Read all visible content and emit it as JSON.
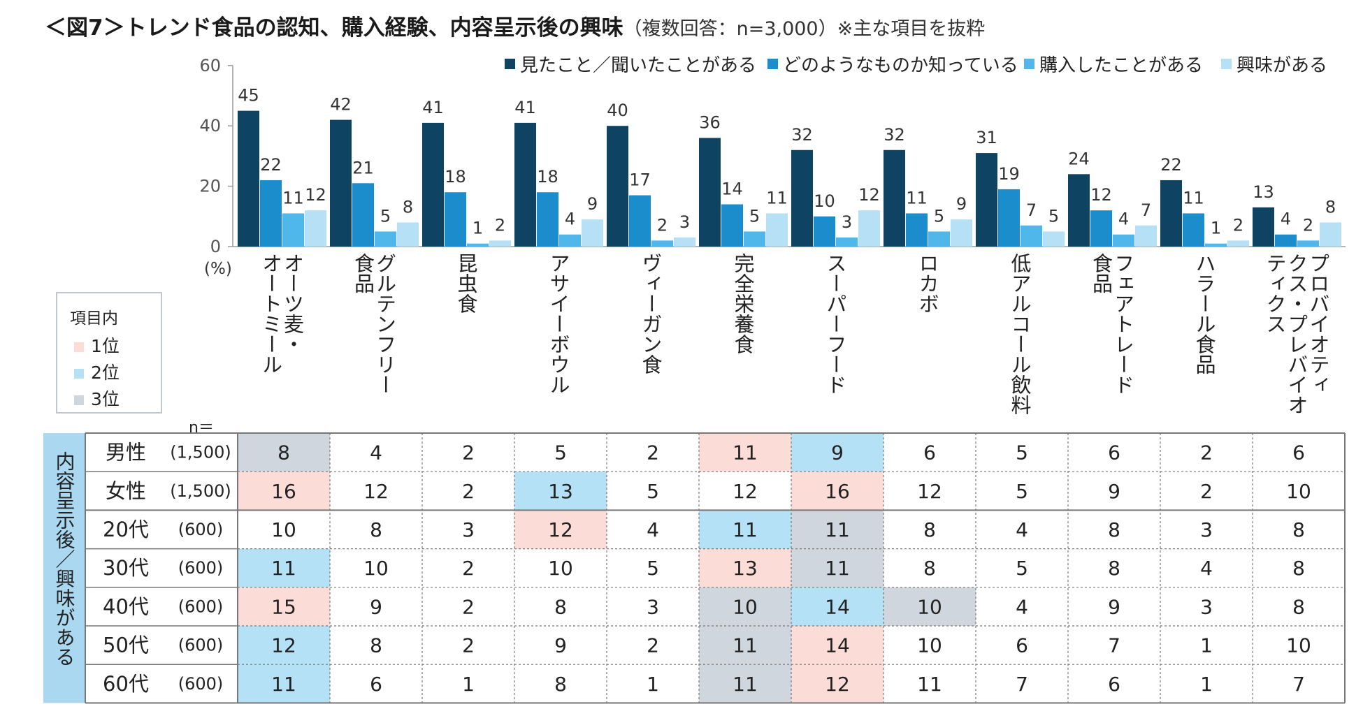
{
  "title": "＜図7＞トレンド食品の認知、購入経験、内容呈示後の興味",
  "title_note": "（複数回答：n=3,000）※主な項目を抜粋",
  "chart_data": {
    "type": "bar",
    "ylim": [
      0,
      60
    ],
    "yticks": [
      0,
      20,
      40,
      60
    ],
    "yunit": "(%)",
    "categories": [
      "オーツ麦・オートミール",
      "グルテンフリー食品",
      "昆虫食",
      "アサイーボウル",
      "ヴィーガン食",
      "完全栄養食",
      "スーパーフード",
      "ロカボ",
      "低アルコール飲料",
      "フェアトレード食品",
      "ハラール食品",
      "プロバイオティクス・プレバイオティクス"
    ],
    "category_lines": [
      [
        "オーツ麦・",
        "オートミール"
      ],
      [
        "グルテンフリー",
        "食品"
      ],
      [
        "昆虫食"
      ],
      [
        "アサイーボウル"
      ],
      [
        "ヴィーガン食"
      ],
      [
        "完全栄養食"
      ],
      [
        "スーパーフード"
      ],
      [
        "ロカボ"
      ],
      [
        "低アルコール飲料"
      ],
      [
        "フェアトレード",
        "食品"
      ],
      [
        "ハラール食品"
      ],
      [
        "プロバイオティ",
        "クス・プレバイオ",
        "ティクス"
      ]
    ],
    "series": [
      {
        "name": "見たこと／聞いたことがある",
        "color": "#0e4462",
        "values": [
          45,
          42,
          41,
          41,
          40,
          36,
          32,
          32,
          31,
          24,
          22,
          13
        ]
      },
      {
        "name": "どのようなものか知っている",
        "color": "#1b8ccc",
        "values": [
          22,
          21,
          18,
          18,
          17,
          14,
          10,
          11,
          19,
          12,
          11,
          4
        ]
      },
      {
        "name": "購入したことがある",
        "color": "#4fb7ea",
        "values": [
          11,
          5,
          1,
          4,
          2,
          5,
          3,
          5,
          7,
          4,
          1,
          2
        ]
      },
      {
        "name": "興味がある",
        "color": "#b6e0f5",
        "values": [
          12,
          8,
          2,
          9,
          3,
          11,
          12,
          9,
          5,
          7,
          2,
          8
        ]
      }
    ]
  },
  "rank_legend": {
    "title": "項目内",
    "items": [
      {
        "label": "1位",
        "color": "#fbdcd6"
      },
      {
        "label": "2位",
        "color": "#b4e1f6"
      },
      {
        "label": "3位",
        "color": "#cfd6de"
      }
    ]
  },
  "table": {
    "side_label": "内容呈示後／興味がある",
    "side_color": "#a9d8f0",
    "n_label": "n＝",
    "rows": [
      {
        "label": "男性",
        "n": "(1,500)",
        "values": [
          8,
          4,
          2,
          5,
          2,
          11,
          9,
          6,
          5,
          6,
          2,
          6
        ],
        "ranks": [
          3,
          0,
          0,
          0,
          0,
          1,
          2,
          0,
          0,
          0,
          0,
          0
        ]
      },
      {
        "label": "女性",
        "n": "(1,500)",
        "values": [
          16,
          12,
          2,
          13,
          5,
          12,
          16,
          12,
          5,
          9,
          2,
          10
        ],
        "ranks": [
          1,
          0,
          0,
          2,
          0,
          0,
          1,
          0,
          0,
          0,
          0,
          0
        ]
      },
      {
        "label": "20代",
        "n": "(600)",
        "values": [
          10,
          8,
          3,
          12,
          4,
          11,
          11,
          8,
          4,
          8,
          3,
          8
        ],
        "ranks": [
          0,
          0,
          0,
          1,
          0,
          2,
          3,
          0,
          0,
          0,
          0,
          0
        ]
      },
      {
        "label": "30代",
        "n": "(600)",
        "values": [
          11,
          10,
          2,
          10,
          5,
          13,
          11,
          8,
          5,
          8,
          4,
          8
        ],
        "ranks": [
          2,
          0,
          0,
          0,
          0,
          1,
          3,
          0,
          0,
          0,
          0,
          0
        ]
      },
      {
        "label": "40代",
        "n": "(600)",
        "values": [
          15,
          9,
          2,
          8,
          3,
          10,
          14,
          10,
          4,
          9,
          3,
          8
        ],
        "ranks": [
          1,
          0,
          0,
          0,
          0,
          3,
          2,
          3,
          0,
          0,
          0,
          0
        ]
      },
      {
        "label": "50代",
        "n": "(600)",
        "values": [
          12,
          8,
          2,
          9,
          2,
          11,
          14,
          10,
          6,
          7,
          1,
          10
        ],
        "ranks": [
          2,
          0,
          0,
          0,
          0,
          3,
          1,
          0,
          0,
          0,
          0,
          0
        ]
      },
      {
        "label": "60代",
        "n": "(600)",
        "values": [
          11,
          6,
          1,
          8,
          1,
          11,
          12,
          11,
          7,
          6,
          1,
          7
        ],
        "ranks": [
          2,
          0,
          0,
          0,
          0,
          3,
          1,
          0,
          0,
          0,
          0,
          0
        ]
      }
    ]
  }
}
